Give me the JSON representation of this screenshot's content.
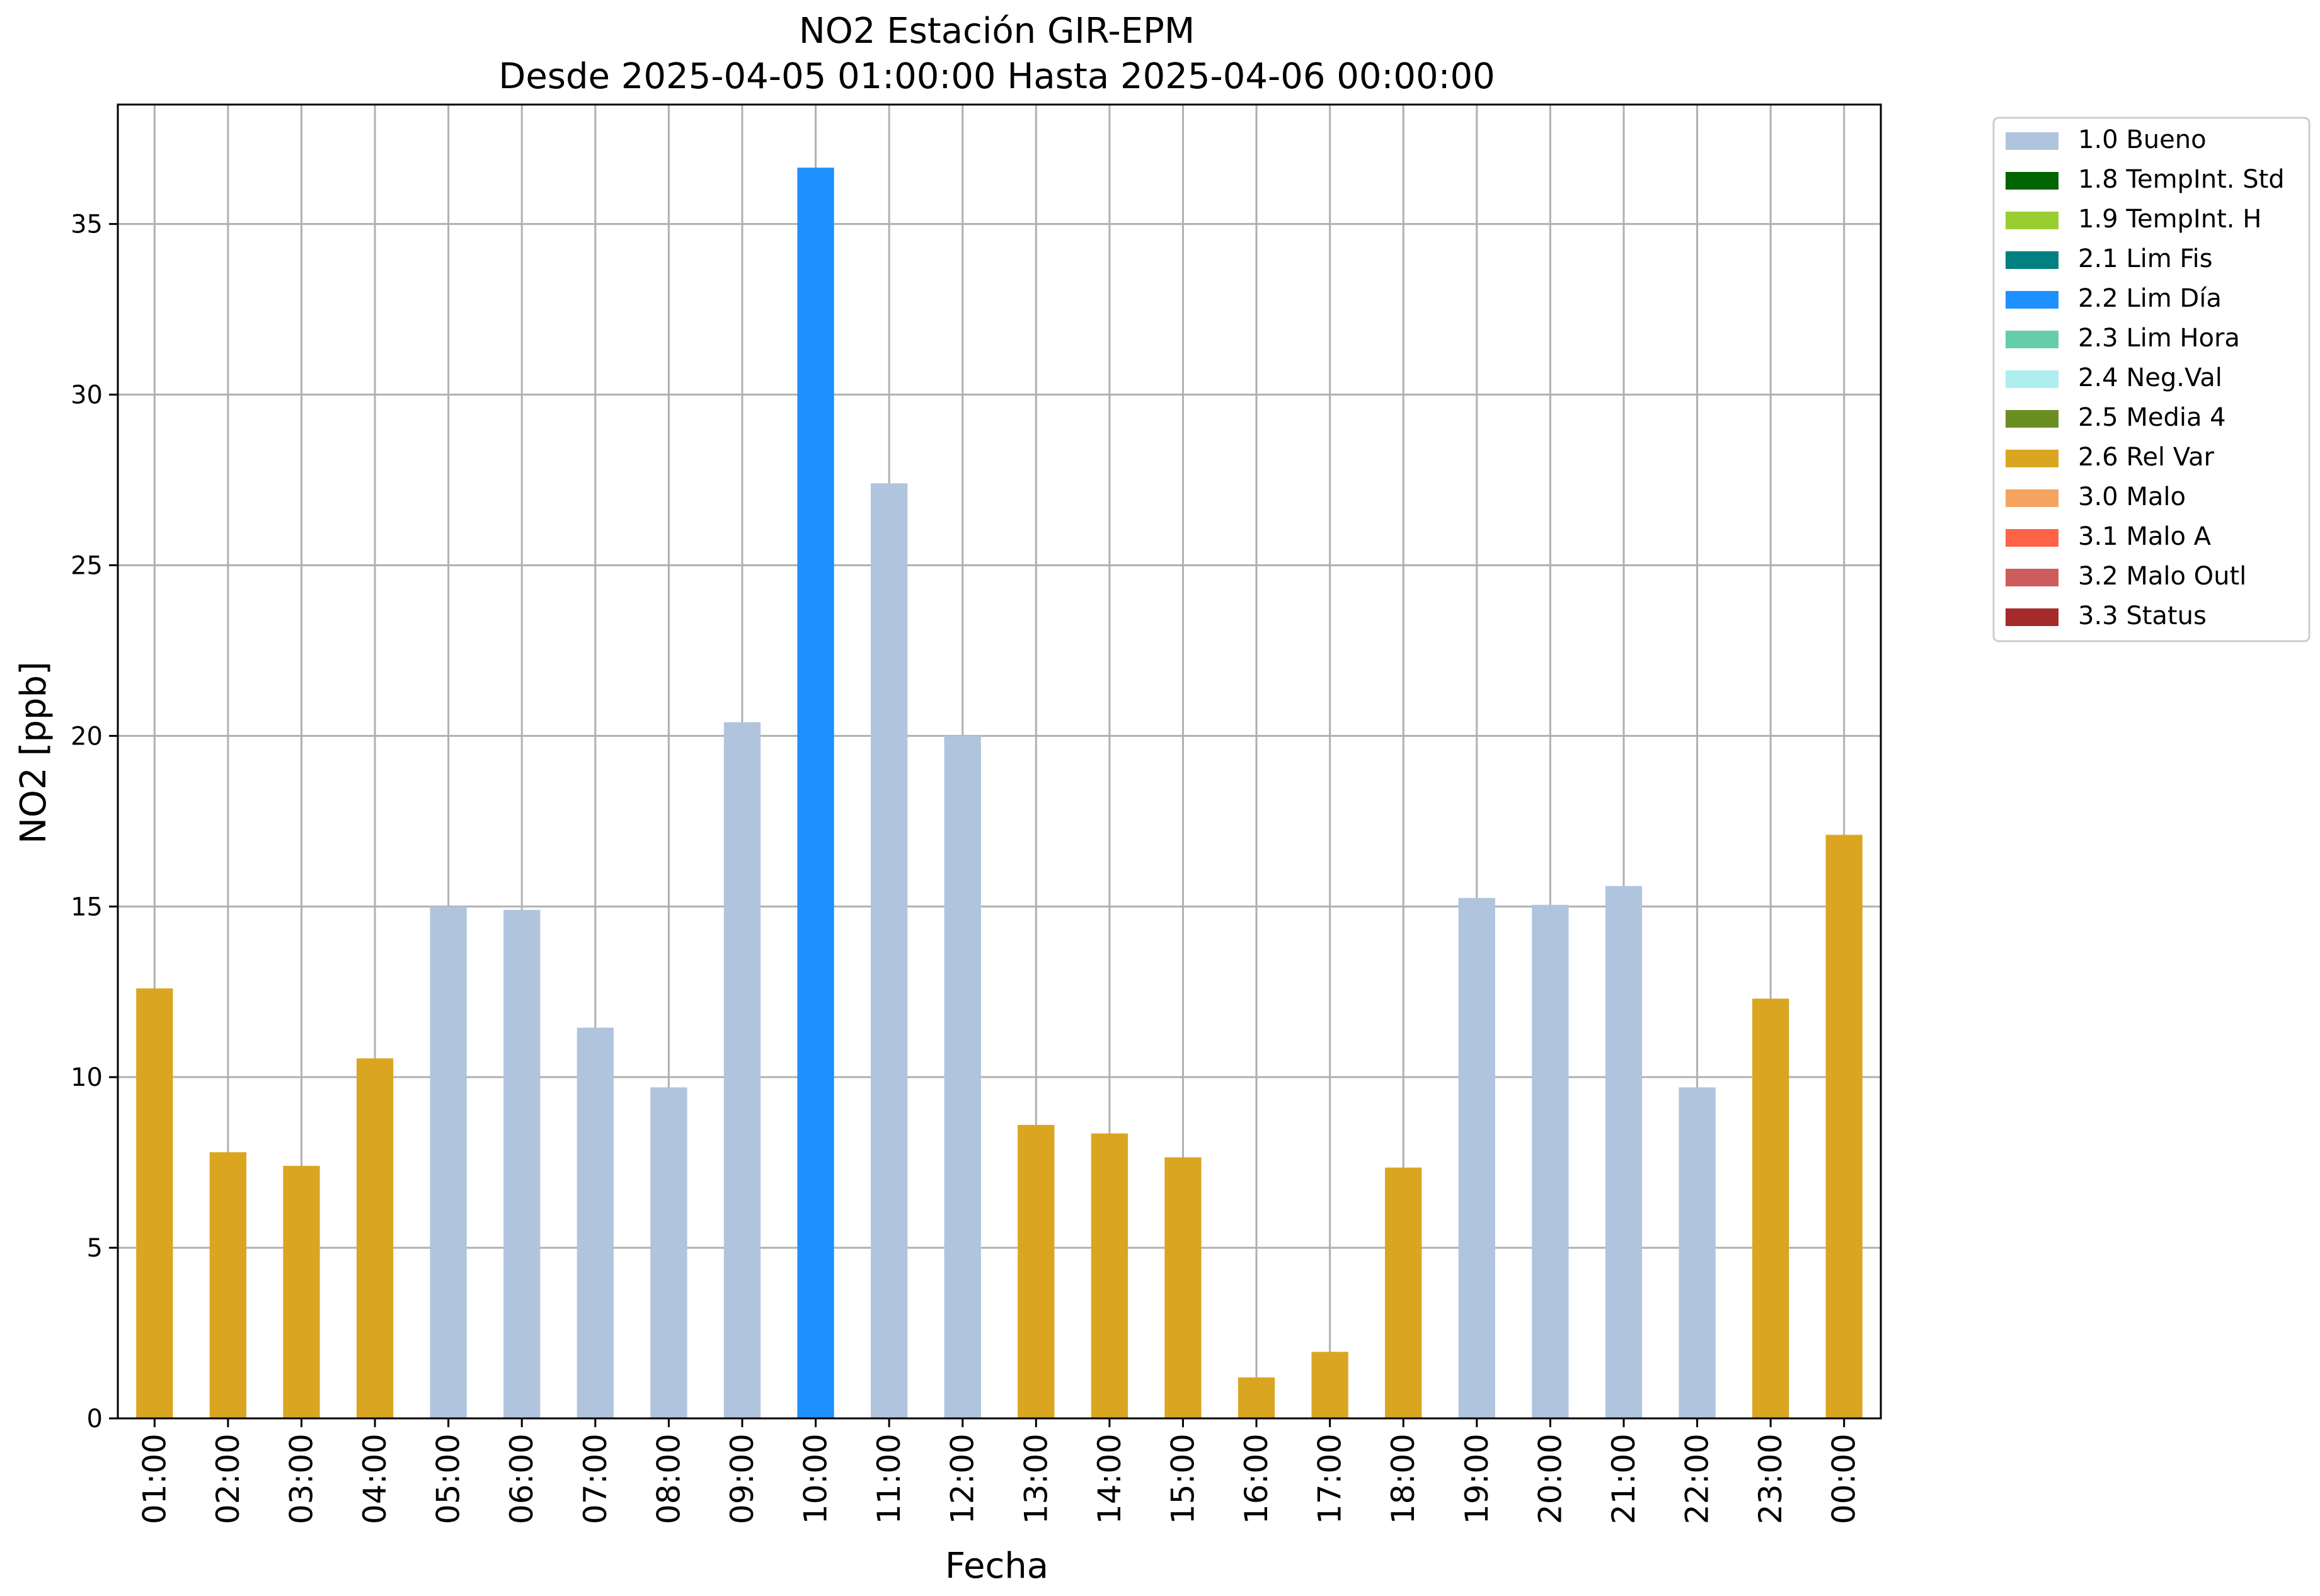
{
  "chart_data": {
    "type": "bar",
    "title": "NO2 Estación GIR-EPM",
    "subtitle": "Desde 2025-04-05 01:00:00 Hasta 2025-04-06 00:00:00",
    "xlabel": "Fecha",
    "ylabel": "NO2 [ppb]",
    "ylim": [
      0,
      38.5
    ],
    "yticks": [
      0,
      5,
      10,
      15,
      20,
      25,
      30,
      35
    ],
    "grid": true,
    "legend_position": "outside-top-right",
    "categories": [
      "01:00",
      "02:00",
      "03:00",
      "04:00",
      "05:00",
      "06:00",
      "07:00",
      "08:00",
      "09:00",
      "10:00",
      "11:00",
      "12:00",
      "13:00",
      "14:00",
      "15:00",
      "16:00",
      "17:00",
      "18:00",
      "19:00",
      "20:00",
      "21:00",
      "22:00",
      "23:00",
      "00:00"
    ],
    "values": [
      12.6,
      7.8,
      7.4,
      10.55,
      15.0,
      14.9,
      11.45,
      9.7,
      20.4,
      36.65,
      27.4,
      20.0,
      8.6,
      8.35,
      7.65,
      1.2,
      1.95,
      7.35,
      15.25,
      15.05,
      15.6,
      9.7,
      12.3,
      17.1
    ],
    "flags": [
      "2.6 Rel Var",
      "2.6 Rel Var",
      "2.6 Rel Var",
      "2.6 Rel Var",
      "1.0 Bueno",
      "1.0 Bueno",
      "1.0 Bueno",
      "1.0 Bueno",
      "1.0 Bueno",
      "2.2 Lim Día",
      "1.0 Bueno",
      "1.0 Bueno",
      "2.6 Rel Var",
      "2.6 Rel Var",
      "2.6 Rel Var",
      "2.6 Rel Var",
      "2.6 Rel Var",
      "2.6 Rel Var",
      "1.0 Bueno",
      "1.0 Bueno",
      "1.0 Bueno",
      "1.0 Bueno",
      "2.6 Rel Var",
      "2.6 Rel Var"
    ],
    "legend": [
      {
        "label": "1.0 Bueno",
        "color": "#b0c4de"
      },
      {
        "label": "1.8 TempInt. Std",
        "color": "#006400"
      },
      {
        "label": "1.9 TempInt. H",
        "color": "#9acd32"
      },
      {
        "label": "2.1 Lim Fis",
        "color": "#008080"
      },
      {
        "label": "2.2 Lim Día",
        "color": "#1e90ff"
      },
      {
        "label": "2.3 Lim Hora",
        "color": "#66cdaa"
      },
      {
        "label": "2.4 Neg.Val",
        "color": "#afeeee"
      },
      {
        "label": "2.5 Media 4",
        "color": "#6b8e23"
      },
      {
        "label": "2.6 Rel Var",
        "color": "#daa520"
      },
      {
        "label": "3.0 Malo",
        "color": "#f4a460"
      },
      {
        "label": "3.1 Malo A",
        "color": "#ff6347"
      },
      {
        "label": "3.2 Malo Outl",
        "color": "#cd5c5c"
      },
      {
        "label": "3.3 Status",
        "color": "#a52a2a"
      }
    ]
  }
}
